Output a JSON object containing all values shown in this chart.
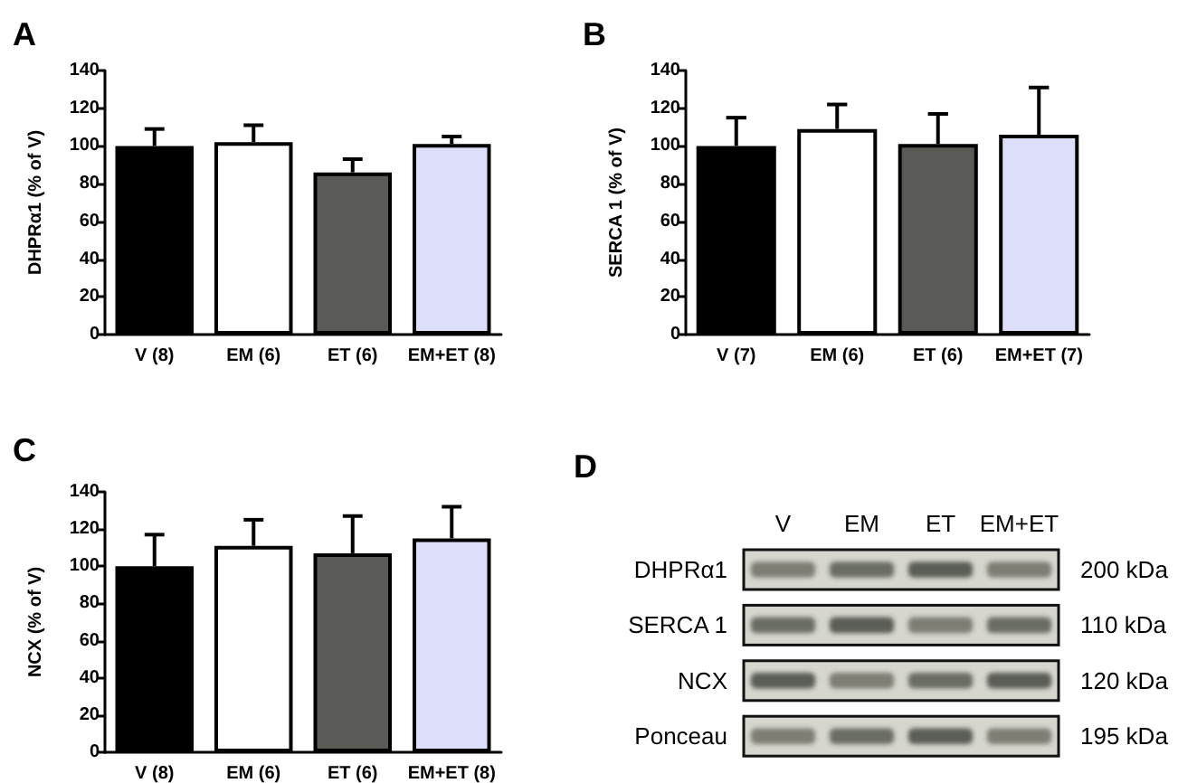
{
  "chart_data": [
    {
      "type": "bar",
      "title": "A",
      "ylabel": "DHPRα1 (% of V)",
      "categories": [
        "V (8)",
        "EM (6)",
        "ET (6)",
        "EM+ET (8)"
      ],
      "values": [
        100,
        102,
        86,
        101
      ],
      "colors": [
        "#000000",
        "#ffffff",
        "#5a5b56",
        "#dcdefa"
      ],
      "errors": [
        [
          100,
          109
        ],
        [
          102,
          111
        ],
        [
          86,
          93
        ],
        [
          101,
          105
        ]
      ],
      "ylim": [
        0,
        140
      ],
      "yticks": [
        0,
        20,
        40,
        60,
        80,
        100,
        120,
        140
      ]
    },
    {
      "type": "bar",
      "title": "B",
      "ylabel": "SERCA 1 (% of V)",
      "categories": [
        "V (7)",
        "EM (6)",
        "ET (6)",
        "EM+ET (7)"
      ],
      "values": [
        100,
        109,
        101,
        106
      ],
      "colors": [
        "#000000",
        "#ffffff",
        "#5a5b56",
        "#dcdefa"
      ],
      "errors": [
        [
          100,
          115
        ],
        [
          109,
          122
        ],
        [
          101,
          117
        ],
        [
          106,
          131
        ]
      ],
      "ylim": [
        0,
        140
      ],
      "yticks": [
        0,
        20,
        40,
        60,
        80,
        100,
        120,
        140
      ]
    },
    {
      "type": "bar",
      "title": "C",
      "ylabel": "NCX (% of V)",
      "categories": [
        "V (8)",
        "EM (6)",
        "ET (6)",
        "EM+ET (8)"
      ],
      "values": [
        100,
        111,
        107,
        115
      ],
      "colors": [
        "#000000",
        "#ffffff",
        "#5a5b56",
        "#dcdefa"
      ],
      "errors": [
        [
          100,
          117
        ],
        [
          111,
          125
        ],
        [
          107,
          127
        ],
        [
          115,
          132
        ]
      ],
      "ylim": [
        0,
        140
      ],
      "yticks": [
        0,
        20,
        40,
        60,
        80,
        100,
        120,
        140
      ]
    },
    {
      "type": "other",
      "title": "D",
      "categories": [
        "V",
        "EM",
        "ET",
        "EM+ET"
      ],
      "y_categories": [
        "DHPRα1",
        "SERCA 1",
        "NCX",
        "Ponceau"
      ],
      "y2_categories": [
        "200 kDa",
        "110 kDa",
        "120 kDa",
        "195 kDa"
      ]
    }
  ]
}
